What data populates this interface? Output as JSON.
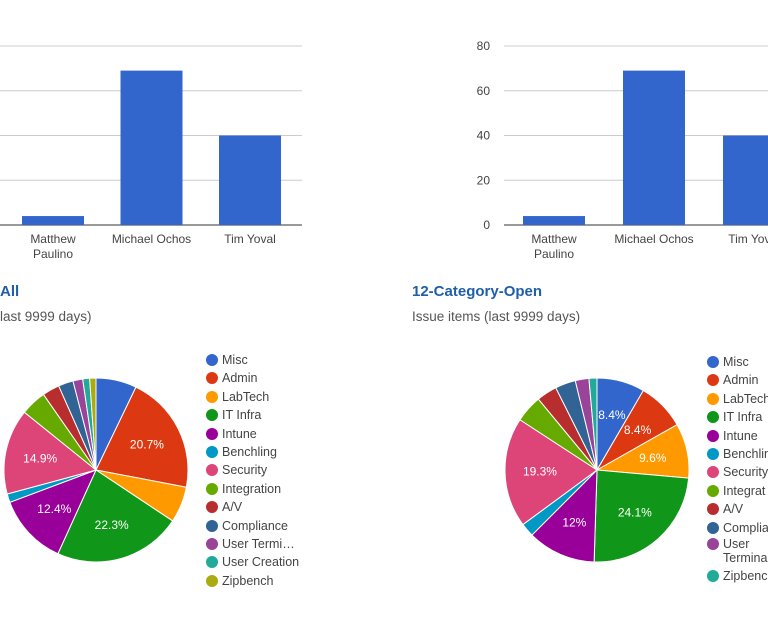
{
  "chart_data": [
    {
      "type": "bar",
      "categories": [
        "Matthew Paulino",
        "Michael Ochos",
        "Tim Yoval"
      ],
      "values": [
        4,
        69,
        40
      ],
      "ylim": [
        0,
        80
      ],
      "grid": true,
      "colors": [
        "#3366cc"
      ]
    },
    {
      "type": "bar",
      "categories": [
        "Matthew Paulino",
        "Michael Ochos",
        "Tim Yoval"
      ],
      "values": [
        4,
        69,
        40
      ],
      "ylim": [
        0,
        80
      ],
      "yticks": [
        0,
        20,
        40,
        60,
        80
      ],
      "grid": true,
      "colors": [
        "#3366cc"
      ]
    },
    {
      "type": "pie",
      "title": "All",
      "subtitle": "last 9999 days)",
      "labels": [
        "Misc",
        "Admin",
        "LabTech",
        "IT Infra",
        "Intune",
        "Benchling",
        "Security",
        "Integration",
        "A/V",
        "Compliance",
        "User Termi…",
        "User Creation",
        "Zipbench"
      ],
      "values": [
        7.1,
        20.7,
        6.3,
        22.3,
        12.4,
        1.5,
        14.9,
        4.5,
        3.0,
        2.6,
        1.7,
        1.2,
        1.1
      ],
      "slice_labels": [
        "",
        "20.7%",
        "",
        "22.3%",
        "12.4%",
        "",
        "14.9%",
        "",
        "",
        "",
        "",
        "",
        ""
      ],
      "legend": "right"
    },
    {
      "type": "pie",
      "title": "12-Category-Open",
      "subtitle": "Issue items (last 9999 days)",
      "labels": [
        "Misc",
        "Admin",
        "LabTech",
        "IT Infra",
        "Intune",
        "Benchling",
        "Security",
        "Integrat",
        "A/V",
        "Complia",
        "User Termina",
        "Zipbench"
      ],
      "values": [
        8.4,
        8.4,
        9.6,
        24.1,
        12.0,
        2.4,
        19.3,
        4.8,
        3.6,
        3.6,
        2.4,
        1.4
      ],
      "slice_labels": [
        "8.4%",
        "8.4%",
        "9.6%",
        "24.1%",
        "12%",
        "",
        "19.3%",
        "",
        "",
        "",
        "",
        ""
      ],
      "legend": "right"
    }
  ],
  "colors": [
    "#3366cc",
    "#dc3912",
    "#ff9900",
    "#109618",
    "#990099",
    "#0099c6",
    "#dd4477",
    "#66aa00",
    "#b82e2e",
    "#316395",
    "#994499",
    "#22aa99",
    "#aaaa11"
  ],
  "colors_right": [
    "#3366cc",
    "#dc3912",
    "#ff9900",
    "#109618",
    "#990099",
    "#0099c6",
    "#dd4477",
    "#66aa00",
    "#b82e2e",
    "#316395",
    "#994499",
    "#22aa99"
  ]
}
